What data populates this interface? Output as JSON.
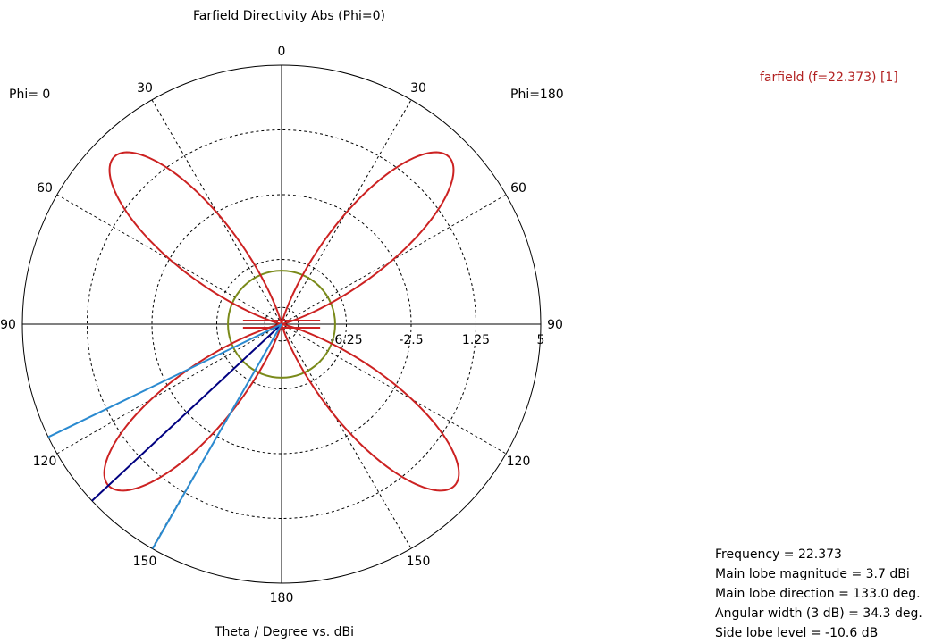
{
  "chart_data": {
    "type": "polar",
    "title": "Farfield Directivity Abs (Phi=0)",
    "xlabel": "Theta / Degree vs. dBi",
    "phi_labels": {
      "left": "Phi=  0",
      "right": "Phi=180"
    },
    "angle_ticks": [
      {
        "label": "0",
        "theta": 0
      },
      {
        "label": "30",
        "theta": -30
      },
      {
        "label": "30",
        "theta": 30
      },
      {
        "label": "60",
        "theta": -60
      },
      {
        "label": "60",
        "theta": 60
      },
      {
        "label": "90",
        "theta": -90
      },
      {
        "label": "90",
        "theta": 90
      },
      {
        "label": "120",
        "theta": -120
      },
      {
        "label": "120",
        "theta": 120
      },
      {
        "label": "150",
        "theta": -150
      },
      {
        "label": "150",
        "theta": 150
      },
      {
        "label": "180",
        "theta": 180
      }
    ],
    "radial_ticks": [
      {
        "label": "-6.25",
        "value": -6.25
      },
      {
        "label": "-2.5",
        "value": -2.5
      },
      {
        "label": "1.25",
        "value": 1.25
      },
      {
        "label": "5",
        "value": 5
      }
    ],
    "rlim": [
      -10,
      5
    ],
    "legend": "farfield (f=22.373) [1]",
    "series": [
      {
        "name": "farfield (f=22.373) [1]",
        "color": "#cc2222",
        "lobes": [
          {
            "center": -45,
            "peak": 3.7
          },
          {
            "center": 45,
            "peak": 3.7
          },
          {
            "center": -133,
            "peak": 3.7
          },
          {
            "center": 133,
            "peak": 3.7
          }
        ],
        "min_level": -10
      }
    ],
    "side_lobe_circle": {
      "value": -6.9,
      "color": "#7a8a1a"
    },
    "markers": {
      "main_direction": {
        "theta": 133,
        "color": "#000080"
      },
      "beam_edges": [
        {
          "theta": 115.85
        },
        {
          "theta": 150.15
        }
      ],
      "beam_color": "#2a8ad0"
    },
    "info": {
      "frequency": "Frequency = 22.373",
      "magnitude": "Main lobe magnitude =    3.7 dBi",
      "direction": "Main lobe direction =  133.0 deg.",
      "width": "Angular width (3 dB) =  34.3 deg.",
      "side_lobe": "Side lobe level = -10.6 dB"
    }
  }
}
